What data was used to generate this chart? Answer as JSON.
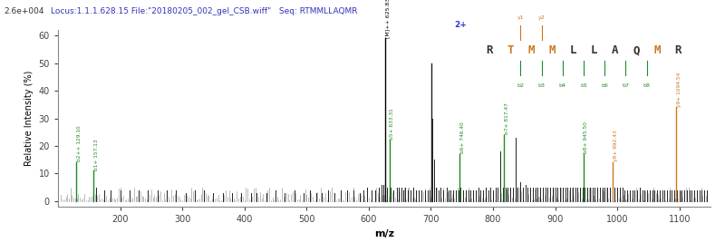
{
  "title_locus": "Locus:1.1.1.628.15 File:\"20180205_002_gel_CSB.wiff\"   Seq: RTMMLLAQMR",
  "intensity_label": "2.6e+004",
  "xlabel": "m/z",
  "ylabel": "Relative Intensity (%)",
  "xlim": [
    100,
    1150
  ],
  "ylim": [
    -2,
    62
  ],
  "yticks": [
    0,
    10,
    20,
    30,
    40,
    50,
    60
  ],
  "ytick_labels": [
    "0",
    "10",
    "20",
    "30",
    "40",
    "50",
    "60"
  ],
  "xticks": [
    200,
    300,
    400,
    500,
    600,
    700,
    800,
    900,
    1000,
    1100
  ],
  "background_color": "#ffffff",
  "title_color": "#3333bb",
  "labeled_peaks_green": [
    {
      "mz": 129.1,
      "intensity": 14,
      "label": "b2++ 129.10"
    },
    {
      "mz": 157.13,
      "intensity": 11,
      "label": "b1+ 157.13"
    },
    {
      "mz": 633.31,
      "intensity": 22,
      "label": "b5+ 633.31"
    },
    {
      "mz": 746.4,
      "intensity": 17,
      "label": "b6+ 746.40"
    },
    {
      "mz": 817.47,
      "intensity": 24,
      "label": "b7+ 817.47"
    },
    {
      "mz": 945.5,
      "intensity": 17,
      "label": "b8+ 945.50"
    }
  ],
  "labeled_peaks_orange": [
    {
      "mz": 992.43,
      "intensity": 14,
      "label": "y8+ 992.43"
    },
    {
      "mz": 1094.54,
      "intensity": 34,
      "label": "y9+ 1094.54"
    }
  ],
  "main_peak": {
    "mz": 625.83,
    "intensity": 59,
    "label": "[M]++ 625.83"
  },
  "second_peak": {
    "mz": 700.5,
    "intensity": 50
  },
  "noise_seed": 123,
  "prominent_black": [
    [
      161,
      5
    ],
    [
      175,
      4
    ],
    [
      185,
      4
    ],
    [
      200,
      4
    ],
    [
      215,
      4
    ],
    [
      230,
      4
    ],
    [
      245,
      4
    ],
    [
      260,
      4
    ],
    [
      275,
      4
    ],
    [
      290,
      4
    ],
    [
      305,
      3
    ],
    [
      320,
      4
    ],
    [
      335,
      4
    ],
    [
      350,
      3
    ],
    [
      365,
      3
    ],
    [
      380,
      3
    ],
    [
      395,
      3
    ],
    [
      410,
      3
    ],
    [
      420,
      3
    ],
    [
      435,
      3
    ],
    [
      450,
      4
    ],
    [
      465,
      3
    ],
    [
      480,
      4
    ],
    [
      495,
      3
    ],
    [
      505,
      4
    ],
    [
      515,
      3
    ],
    [
      525,
      3
    ],
    [
      535,
      4
    ],
    [
      545,
      3
    ],
    [
      555,
      4
    ],
    [
      565,
      4
    ],
    [
      575,
      4
    ],
    [
      585,
      3
    ],
    [
      592,
      4
    ],
    [
      598,
      5
    ],
    [
      605,
      4
    ],
    [
      610,
      4
    ],
    [
      616,
      5
    ],
    [
      620,
      6
    ],
    [
      623,
      6
    ],
    [
      627,
      5
    ],
    [
      630,
      5
    ],
    [
      635,
      5
    ],
    [
      640,
      4
    ],
    [
      645,
      5
    ],
    [
      648,
      5
    ],
    [
      652,
      5
    ],
    [
      655,
      4
    ],
    [
      658,
      5
    ],
    [
      663,
      4
    ],
    [
      668,
      4
    ],
    [
      672,
      5
    ],
    [
      676,
      4
    ],
    [
      680,
      4
    ],
    [
      685,
      4
    ],
    [
      690,
      4
    ],
    [
      695,
      4
    ],
    [
      698,
      4
    ],
    [
      702,
      30
    ],
    [
      705,
      15
    ],
    [
      708,
      5
    ],
    [
      712,
      4
    ],
    [
      716,
      5
    ],
    [
      720,
      4
    ],
    [
      725,
      5
    ],
    [
      728,
      4
    ],
    [
      732,
      4
    ],
    [
      736,
      4
    ],
    [
      740,
      4
    ],
    [
      744,
      4
    ],
    [
      748,
      5
    ],
    [
      752,
      4
    ],
    [
      756,
      4
    ],
    [
      760,
      4
    ],
    [
      764,
      4
    ],
    [
      768,
      4
    ],
    [
      772,
      4
    ],
    [
      776,
      5
    ],
    [
      780,
      4
    ],
    [
      784,
      4
    ],
    [
      788,
      5
    ],
    [
      792,
      4
    ],
    [
      796,
      5
    ],
    [
      800,
      4
    ],
    [
      804,
      5
    ],
    [
      808,
      5
    ],
    [
      812,
      18
    ],
    [
      816,
      5
    ],
    [
      820,
      5
    ],
    [
      824,
      5
    ],
    [
      828,
      5
    ],
    [
      832,
      5
    ],
    [
      836,
      23
    ],
    [
      840,
      5
    ],
    [
      844,
      7
    ],
    [
      848,
      5
    ],
    [
      852,
      6
    ],
    [
      856,
      5
    ],
    [
      860,
      5
    ],
    [
      864,
      5
    ],
    [
      868,
      5
    ],
    [
      872,
      5
    ],
    [
      876,
      5
    ],
    [
      880,
      5
    ],
    [
      884,
      5
    ],
    [
      888,
      5
    ],
    [
      892,
      5
    ],
    [
      896,
      5
    ],
    [
      900,
      5
    ],
    [
      904,
      5
    ],
    [
      908,
      5
    ],
    [
      912,
      5
    ],
    [
      916,
      5
    ],
    [
      920,
      5
    ],
    [
      924,
      5
    ],
    [
      928,
      5
    ],
    [
      932,
      5
    ],
    [
      936,
      5
    ],
    [
      940,
      5
    ],
    [
      944,
      5
    ],
    [
      948,
      5
    ],
    [
      952,
      5
    ],
    [
      956,
      5
    ],
    [
      960,
      5
    ],
    [
      964,
      5
    ],
    [
      968,
      5
    ],
    [
      972,
      5
    ],
    [
      976,
      5
    ],
    [
      980,
      5
    ],
    [
      984,
      5
    ],
    [
      988,
      5
    ],
    [
      996,
      5
    ],
    [
      1000,
      5
    ],
    [
      1004,
      5
    ],
    [
      1008,
      5
    ],
    [
      1012,
      4
    ],
    [
      1016,
      4
    ],
    [
      1020,
      4
    ],
    [
      1024,
      4
    ],
    [
      1028,
      4
    ],
    [
      1032,
      4
    ],
    [
      1036,
      5
    ],
    [
      1040,
      4
    ],
    [
      1044,
      4
    ],
    [
      1048,
      4
    ],
    [
      1052,
      4
    ],
    [
      1056,
      4
    ],
    [
      1060,
      4
    ],
    [
      1064,
      4
    ],
    [
      1068,
      4
    ],
    [
      1072,
      4
    ],
    [
      1076,
      4
    ],
    [
      1080,
      4
    ],
    [
      1084,
      4
    ],
    [
      1088,
      4
    ],
    [
      1092,
      4
    ],
    [
      1096,
      4
    ],
    [
      1100,
      4
    ],
    [
      1104,
      4
    ],
    [
      1108,
      4
    ],
    [
      1112,
      4
    ],
    [
      1116,
      4
    ],
    [
      1120,
      4
    ],
    [
      1124,
      4
    ],
    [
      1128,
      4
    ],
    [
      1132,
      4
    ],
    [
      1136,
      4
    ],
    [
      1140,
      4
    ],
    [
      1144,
      4
    ]
  ]
}
